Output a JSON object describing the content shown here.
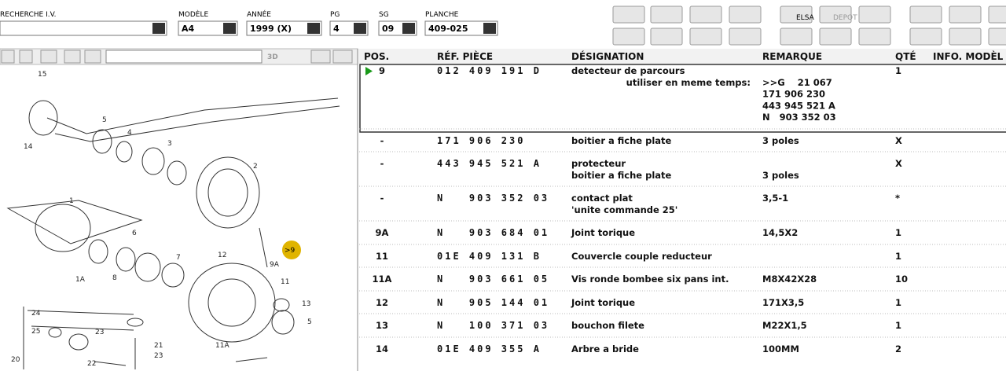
{
  "header": {
    "search_label": "RECHERCHE I.V.",
    "fields": [
      {
        "label": "MODÈLE",
        "value": "A4"
      },
      {
        "label": "ANNÉE",
        "value": "1999 (X)"
      },
      {
        "label": "PG",
        "value": "4"
      },
      {
        "label": "SG",
        "value": "09"
      },
      {
        "label": "PLANCHE",
        "value": "409-025"
      }
    ]
  },
  "toolbar": {
    "elsa": "ELSA",
    "depot": "DEPOT"
  },
  "diagram": {
    "mode_3d": "3D",
    "marker": ">9",
    "callouts": [
      "15",
      "14",
      "5",
      "4",
      "3",
      "2",
      "1",
      "6",
      "8",
      "7",
      "12",
      "1A",
      "9A",
      "11",
      "13",
      "5",
      "24",
      "25",
      "23",
      "21",
      "23",
      "22",
      "20",
      "11A"
    ]
  },
  "table": {
    "columns": [
      "POS.",
      "RÉF. PIÈCE",
      "DÉSIGNATION",
      "REMARQUE",
      "QTÉ",
      "INFO. MODÈL"
    ],
    "rows": [
      {
        "pos": "9",
        "ref": "012 409 191 D",
        "designation": [
          "detecteur de parcours",
          "utiliser en meme temps:"
        ],
        "remark": [
          ">>G    21 067",
          "171 906 230",
          "443 945 521 A",
          "N   903 352 03"
        ],
        "qty": "1"
      },
      {
        "pos": "-",
        "ref": "171 906 230",
        "designation": [
          "boitier a fiche plate"
        ],
        "remark": [
          "3 poles"
        ],
        "qty": "X"
      },
      {
        "pos": "-",
        "ref": "443 945 521 A",
        "designation": [
          "protecteur",
          "boitier a fiche plate"
        ],
        "remark": [
          "3 poles"
        ],
        "qty": "X"
      },
      {
        "pos": "-",
        "ref": "N   903 352 03",
        "designation": [
          "contact plat",
          "'unite commande 25'"
        ],
        "remark": [
          "3,5-1"
        ],
        "qty": "*"
      },
      {
        "pos": "9A",
        "ref": "N   903 684 01",
        "designation": [
          "Joint torique"
        ],
        "remark": [
          "14,5X2"
        ],
        "qty": "1"
      },
      {
        "pos": "11",
        "ref": "01E 409 131 B",
        "designation": [
          "Couvercle couple reducteur"
        ],
        "remark": [],
        "qty": "1"
      },
      {
        "pos": "11A",
        "ref": "N   903 661 05",
        "designation": [
          "Vis ronde bombee six pans int."
        ],
        "remark": [
          "M8X42X28"
        ],
        "qty": "10"
      },
      {
        "pos": "12",
        "ref": "N   905 144 01",
        "designation": [
          "Joint torique"
        ],
        "remark": [
          "171X3,5"
        ],
        "qty": "1"
      },
      {
        "pos": "13",
        "ref": "N   100 371 03",
        "designation": [
          "bouchon filete"
        ],
        "remark": [
          "M22X1,5"
        ],
        "qty": "1"
      },
      {
        "pos": "14",
        "ref": "01E 409 355 A",
        "designation": [
          "Arbre a bride"
        ],
        "remark": [
          "100MM"
        ],
        "qty": "2"
      }
    ]
  }
}
